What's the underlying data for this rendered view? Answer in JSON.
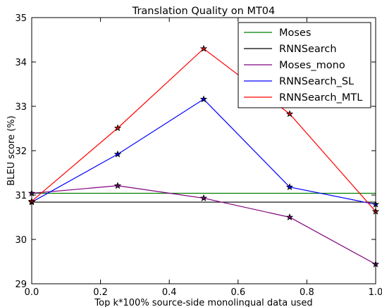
{
  "chart_data": {
    "type": "line",
    "title": "Translation Quality on MT04",
    "xlabel": "Top k*100% source-side monolingual data used",
    "ylabel": "BLEU score (%)",
    "xlim": [
      0.0,
      1.0
    ],
    "ylim": [
      29,
      35
    ],
    "xticks": [
      "0.0",
      "0.2",
      "0.4",
      "0.6",
      "0.8",
      "1.0"
    ],
    "yticks": [
      "29",
      "30",
      "31",
      "32",
      "33",
      "34",
      "35"
    ],
    "grid": false,
    "legend_position": "top-right",
    "x": [
      0.0,
      0.25,
      0.5,
      0.75,
      1.0
    ],
    "series": [
      {
        "name": "Moses",
        "color": "#008000",
        "markers": false,
        "values": [
          31.04,
          31.04,
          31.04,
          31.04,
          31.04
        ]
      },
      {
        "name": "RNNSearch",
        "color": "#000000",
        "markers": false,
        "values": [
          30.84,
          30.84,
          30.84,
          30.84,
          30.84
        ]
      },
      {
        "name": "Moses_mono",
        "color": "#800080",
        "markers": true,
        "values": [
          31.04,
          31.21,
          30.93,
          30.5,
          29.44
        ]
      },
      {
        "name": "RNNSearch_SL",
        "color": "#0000ff",
        "markers": true,
        "values": [
          30.84,
          31.92,
          33.16,
          31.18,
          30.79
        ]
      },
      {
        "name": "RNNSearch_MTL",
        "color": "#ff0000",
        "markers": true,
        "values": [
          30.86,
          32.51,
          34.3,
          32.83,
          30.63
        ]
      }
    ]
  }
}
